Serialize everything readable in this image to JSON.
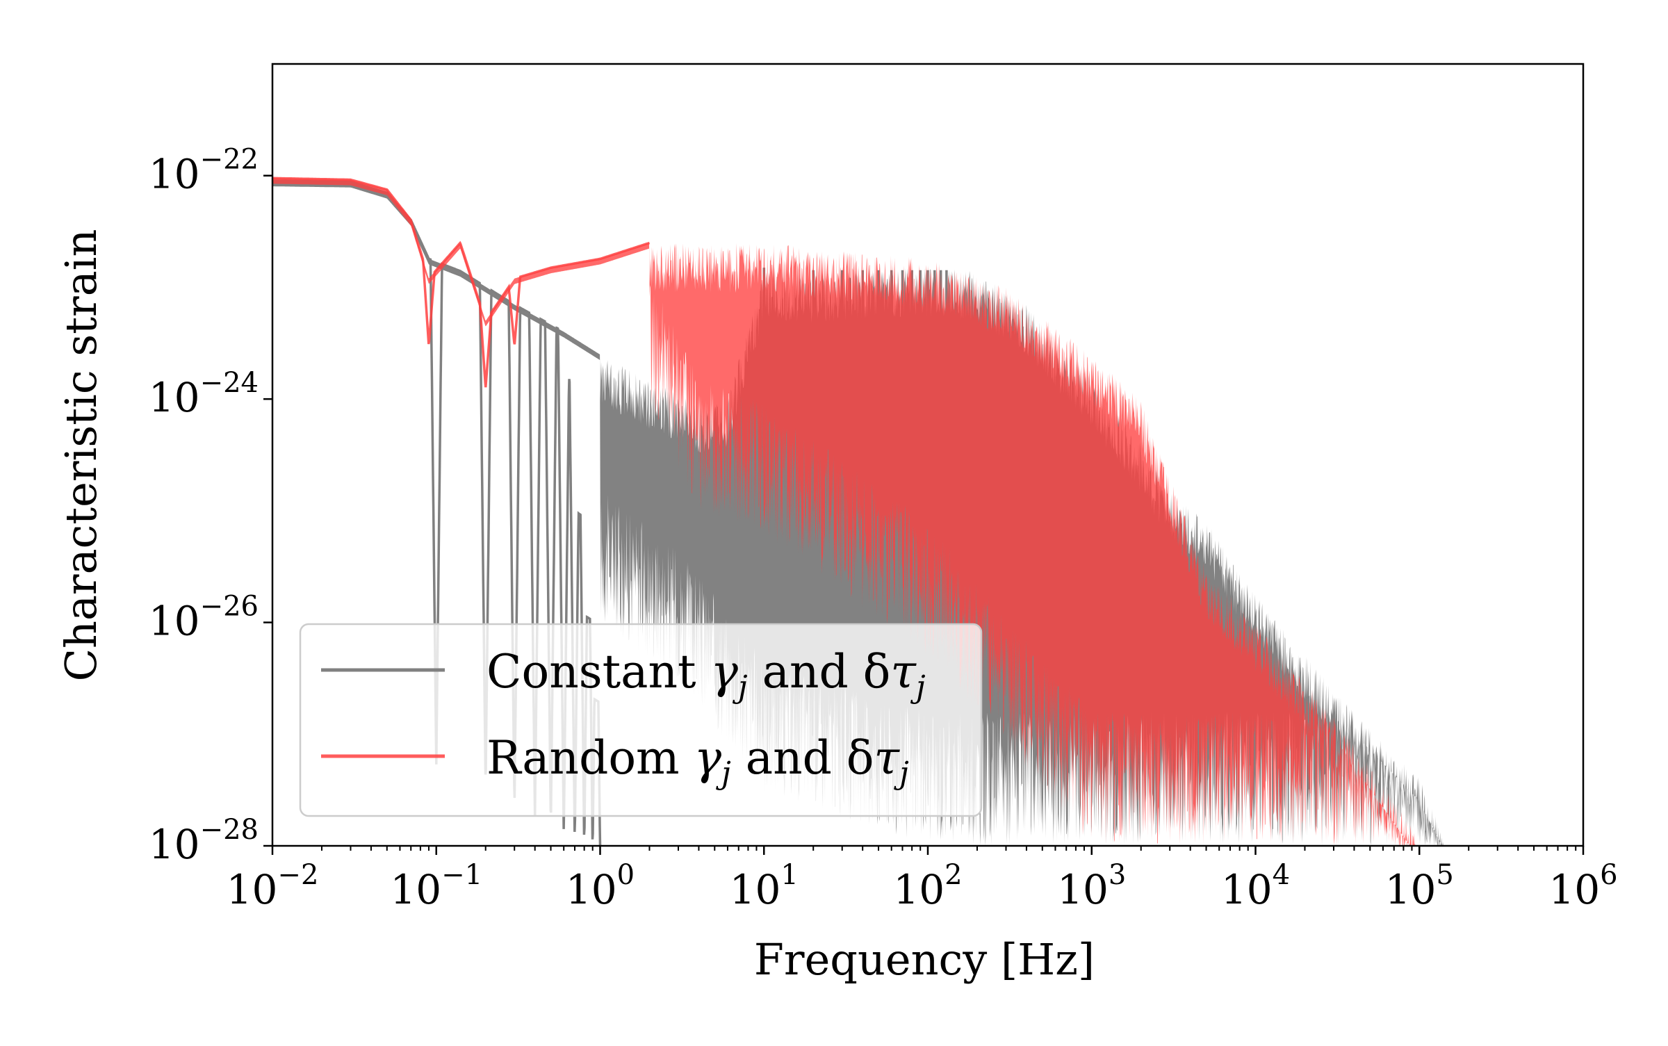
{
  "chart_data": {
    "type": "line",
    "title": "",
    "xlabel": "Frequency [Hz]",
    "ylabel": "Characteristic strain",
    "xscale": "log",
    "yscale": "log",
    "xlim": [
      0.01,
      1000000
    ],
    "ylim": [
      1e-28,
      1e-21
    ],
    "grid": false,
    "legend_position": "bottom-left",
    "x_ticks": [
      {
        "base": "10",
        "exp": "−2"
      },
      {
        "base": "10",
        "exp": "−1"
      },
      {
        "base": "10",
        "exp": "0"
      },
      {
        "base": "10",
        "exp": "1"
      },
      {
        "base": "10",
        "exp": "2"
      },
      {
        "base": "10",
        "exp": "3"
      },
      {
        "base": "10",
        "exp": "4"
      },
      {
        "base": "10",
        "exp": "5"
      },
      {
        "base": "10",
        "exp": "6"
      }
    ],
    "x_tick_values": [
      0.01,
      0.1,
      1,
      10,
      100,
      1000,
      10000,
      100000,
      1000000
    ],
    "y_ticks": [
      {
        "base": "10",
        "exp": "−22"
      },
      {
        "base": "10",
        "exp": "−24"
      },
      {
        "base": "10",
        "exp": "−26"
      },
      {
        "base": "10",
        "exp": "−28"
      }
    ],
    "y_tick_values": [
      1e-22,
      1e-24,
      1e-26,
      1e-28
    ],
    "series": [
      {
        "name": "Constant γj and δτj",
        "legend_prefix": "Constant ",
        "legend_gamma": "γ",
        "legend_mid": " and δ",
        "legend_tau": "τ",
        "legend_sub": "j",
        "color": "#808080",
        "style": "dense oscillating spectrum (envelope, peaks, troughs)",
        "envelope_upper": [
          [
            0.01,
            9e-23
          ],
          [
            0.03,
            8.8e-23
          ],
          [
            0.05,
            7e-23
          ],
          [
            0.07,
            4e-23
          ],
          [
            0.09,
            1.8e-23
          ],
          [
            0.14,
            1.4e-23
          ],
          [
            0.3,
            7e-24
          ],
          [
            0.6,
            4e-24
          ],
          [
            1,
            2.5e-24
          ],
          [
            2,
            1.5e-24
          ],
          [
            4,
            9e-25
          ],
          [
            6,
            1e-24
          ],
          [
            10,
            1.5e-23
          ],
          [
            20,
            1.3e-23
          ],
          [
            50,
            1.5e-23
          ],
          [
            100,
            1.5e-23
          ],
          [
            200,
            1.4e-23
          ],
          [
            400,
            7e-24
          ],
          [
            1000,
            1.5e-24
          ],
          [
            2000,
            4e-25
          ],
          [
            3000,
            1.5e-25
          ],
          [
            5000,
            8e-26
          ],
          [
            10000,
            1.8e-26
          ],
          [
            30000,
            2.5e-27
          ],
          [
            100000,
            4e-28
          ],
          [
            140000,
            1.5e-28
          ]
        ],
        "envelope_lower": [
          [
            1,
            1e-26
          ],
          [
            3,
            3e-27
          ],
          [
            10,
            3e-28
          ],
          [
            100,
            1e-28
          ],
          [
            1000,
            1e-28
          ]
        ],
        "dips": [
          0.1,
          0.2,
          0.3,
          0.4,
          0.5,
          0.6,
          0.7,
          0.8,
          0.9,
          1.0,
          1.2,
          1.4
        ]
      },
      {
        "name": "Random γj and δτj",
        "legend_prefix": "Random ",
        "legend_gamma": "γ",
        "legend_mid": " and δ",
        "legend_tau": "τ",
        "legend_sub": "j",
        "color": "#ff4040",
        "style": "dense oscillating spectrum, semi-transparent",
        "envelope_upper": [
          [
            0.01,
            9.5e-23
          ],
          [
            0.03,
            9.2e-23
          ],
          [
            0.05,
            7.5e-23
          ],
          [
            0.07,
            4e-23
          ],
          [
            0.09,
            1.2e-23
          ],
          [
            0.14,
            2.5e-23
          ],
          [
            0.2,
            5e-24
          ],
          [
            0.3,
            1.2e-23
          ],
          [
            0.5,
            1.5e-23
          ],
          [
            1,
            1.8e-23
          ],
          [
            2,
            2.5e-23
          ],
          [
            10,
            2.5e-23
          ],
          [
            50,
            2e-23
          ],
          [
            100,
            1.8e-23
          ],
          [
            300,
            1e-23
          ],
          [
            1000,
            2.5e-24
          ],
          [
            2000,
            1e-24
          ],
          [
            3000,
            2e-25
          ],
          [
            5000,
            3e-26
          ],
          [
            10000,
            1e-26
          ],
          [
            30000,
            1.5e-27
          ],
          [
            100000,
            1.2e-28
          ]
        ],
        "envelope_lower": [
          [
            2,
            8e-25
          ],
          [
            4,
            1e-25
          ],
          [
            10,
            6e-26
          ],
          [
            100,
            5e-27
          ],
          [
            1000,
            1e-28
          ]
        ],
        "dips": [
          0.09,
          0.2,
          0.3
        ]
      }
    ]
  }
}
